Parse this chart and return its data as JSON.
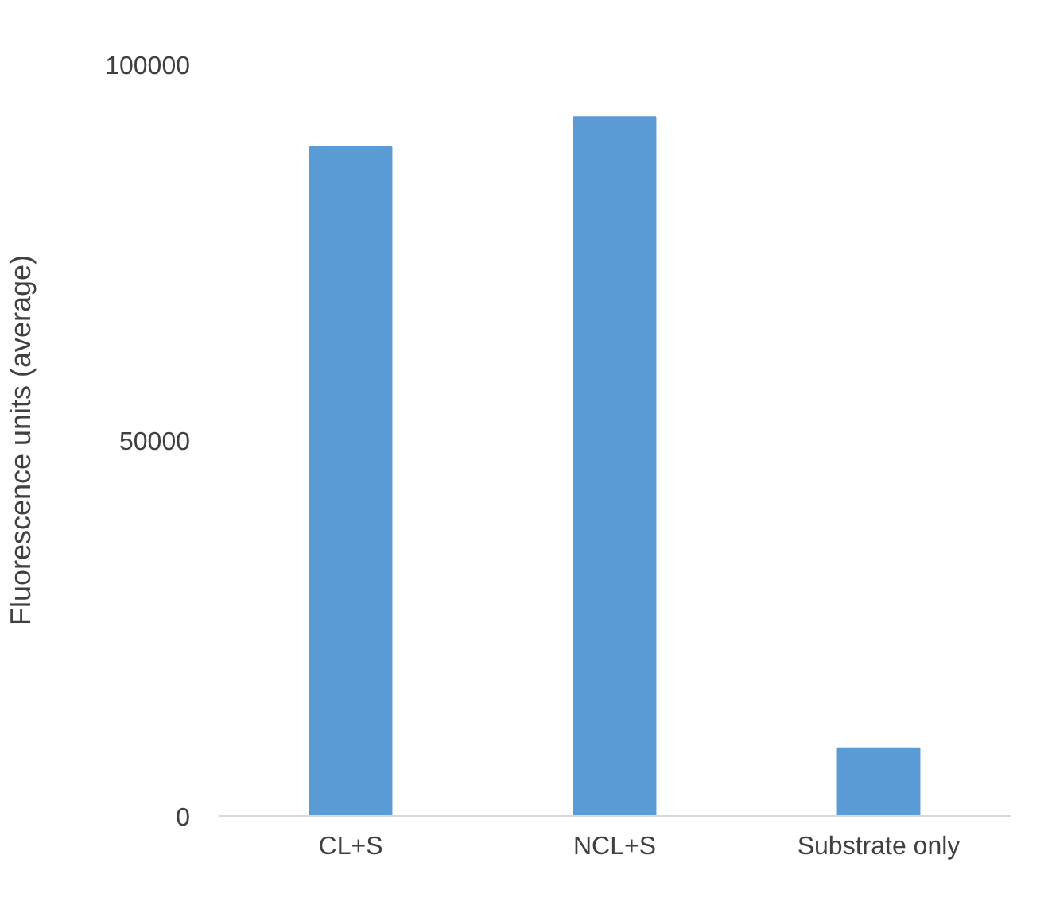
{
  "chart_data": {
    "type": "bar",
    "ylabel": "Fluorescence units (average)",
    "categories": [
      "CL+S",
      "NCL+S",
      "Substrate only"
    ],
    "values": [
      89000,
      93000,
      9000
    ],
    "color": "#5b9bd5",
    "ylim": [
      0,
      100000
    ],
    "yticks": [
      0,
      50000,
      100000
    ],
    "grid": false
  }
}
